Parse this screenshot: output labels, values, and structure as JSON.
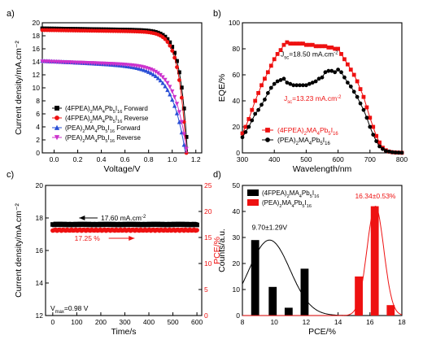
{
  "figure": {
    "panels": [
      "a)",
      "b)",
      "c)",
      "d)"
    ]
  },
  "chart_data": [
    {
      "panel": "a)",
      "type": "line",
      "xlabel": "Voltage/V",
      "ylabel": "Current density/mA.cm⁻²",
      "xlim": [
        -0.1,
        1.25
      ],
      "ylim": [
        0,
        20
      ],
      "xticks": [
        "0.0",
        "0.2",
        "0.4",
        "0.6",
        "0.8",
        "1.0",
        "1.2"
      ],
      "yticks": [
        "0",
        "2",
        "4",
        "6",
        "8",
        "10",
        "12",
        "14",
        "16",
        "18",
        "20"
      ],
      "legend_position": "bottom-left",
      "legend": [
        {
          "pre": "(4FPEA)",
          "s1": "2",
          "mid": "MA",
          "s2": "4",
          "mid2": "Pb",
          "s3": "5",
          "mid3": "I",
          "s4": "16",
          "post": " Forward"
        },
        {
          "pre": "(4FPEA)",
          "s1": "2",
          "mid": "MA",
          "s2": "4",
          "mid2": "Pb",
          "s3": "5",
          "mid3": "I",
          "s4": "16",
          "post": " Reverse"
        },
        {
          "pre": "(PEA)",
          "s1": "2",
          "mid": "MA",
          "s2": "4",
          "mid2": "Pb",
          "s3": "5",
          "mid3": "I",
          "s4": "16",
          "post": " Forward"
        },
        {
          "pre": "(PEA)",
          "s1": "2",
          "mid": "MA",
          "s2": "4",
          "mid2": "Pb",
          "s3": "5",
          "mid3": "I",
          "s4": "16",
          "post": " Reverse"
        }
      ],
      "series": [
        {
          "color": "#000000",
          "marker": "square",
          "jsc": 19.1,
          "voc": 1.13,
          "n": 2.5,
          "j0": 1e-18,
          "slope": 0.45
        },
        {
          "color": "#ee1111",
          "marker": "circle",
          "jsc": 18.85,
          "voc": 1.12,
          "n": 2.5,
          "j0": 1e-18,
          "slope": 0.4
        },
        {
          "color": "#2a4fd6",
          "marker": "triangle-up",
          "jsc": 14.05,
          "voc": 1.12,
          "n": 4.5,
          "j0": 1e-12,
          "slope": 0.9
        },
        {
          "color": "#cc33cc",
          "marker": "triangle-down",
          "jsc": 14.0,
          "voc": 1.13,
          "n": 4.0,
          "j0": 1e-12,
          "slope": 0.6
        }
      ]
    },
    {
      "panel": "b)",
      "type": "line",
      "xlabel": "Wavelength/nm",
      "ylabel": "EQE/%",
      "xlim": [
        300,
        800
      ],
      "ylim": [
        0,
        100
      ],
      "xticks": [
        "300",
        "400",
        "500",
        "600",
        "700",
        "800"
      ],
      "yticks": [
        "0",
        "20",
        "40",
        "60",
        "80",
        "100"
      ],
      "annotations": [
        {
          "pre": "J",
          "sub": "sc",
          "post": "=18.50 mA.cm",
          "sup": "-2",
          "color": "#000000",
          "x": 420,
          "y": 74
        },
        {
          "pre": "J",
          "sub": "sc",
          "post": "=13.23 mA.cm",
          "sup": "-2",
          "color": "#ee1111",
          "x": 430,
          "y": 40
        }
      ],
      "legend_position": "bottom-center",
      "legend": [
        {
          "pre": "(4FPEA)",
          "s1": "2",
          "mid": "MA",
          "s2": "4",
          "mid2": "Pb",
          "s3": "5",
          "mid3": "I",
          "s4": "16",
          "post": ""
        },
        {
          "pre": "(PEA)",
          "s1": "2",
          "mid": "MA",
          "s2": "4",
          "mid2": "Pb",
          "s3": "5",
          "mid3": "I",
          "s4": "16",
          "post": ""
        }
      ],
      "series": [
        {
          "color": "#ee1111",
          "marker": "square",
          "x": [
            300,
            310,
            320,
            330,
            340,
            350,
            360,
            370,
            380,
            390,
            400,
            410,
            420,
            430,
            440,
            450,
            460,
            470,
            480,
            490,
            500,
            510,
            520,
            530,
            540,
            550,
            560,
            570,
            580,
            590,
            600,
            610,
            620,
            630,
            640,
            650,
            660,
            670,
            680,
            690,
            700,
            710,
            720,
            730,
            740,
            750,
            760,
            770,
            780,
            790,
            800
          ],
          "y": [
            15,
            20,
            26,
            33,
            40,
            46,
            52,
            57,
            62,
            67,
            72,
            76,
            79,
            83,
            85,
            84,
            84,
            84,
            84,
            84,
            83,
            83,
            83,
            82,
            82,
            82,
            82,
            81,
            81,
            80,
            80,
            76,
            72,
            68,
            64,
            60,
            55,
            49,
            43,
            35,
            27,
            20,
            13,
            8,
            4,
            2,
            1,
            0.5,
            0.3,
            0.2,
            0.1
          ]
        },
        {
          "color": "#000000",
          "marker": "circle",
          "x": [
            300,
            310,
            320,
            330,
            340,
            350,
            360,
            370,
            380,
            390,
            400,
            410,
            420,
            430,
            440,
            450,
            460,
            470,
            480,
            490,
            500,
            510,
            520,
            530,
            540,
            550,
            560,
            570,
            580,
            590,
            600,
            610,
            620,
            630,
            640,
            650,
            660,
            670,
            680,
            690,
            700,
            710,
            720,
            730,
            740,
            750,
            760,
            770,
            780,
            790,
            800
          ],
          "y": [
            12,
            16,
            20,
            25,
            30,
            33,
            37,
            41,
            46,
            50,
            53,
            55,
            56,
            57,
            54,
            53,
            52,
            52,
            52,
            52,
            52,
            53,
            54,
            55,
            57,
            58,
            62,
            63,
            63,
            62,
            64,
            62,
            58,
            54,
            51,
            47,
            43,
            38,
            33,
            27,
            20,
            14,
            9,
            5,
            3,
            1.5,
            1,
            0.5,
            0.3,
            0.2,
            0.1
          ]
        }
      ]
    },
    {
      "panel": "c)",
      "type": "line",
      "xlabel": "Time/s",
      "ylabel": "Current density/mA.cm⁻²",
      "y2label": "PCE/%",
      "xlim": [
        -30,
        620
      ],
      "ylim": [
        12,
        20
      ],
      "y2lim": [
        0,
        25
      ],
      "xticks": [
        "0",
        "100",
        "200",
        "300",
        "400",
        "500",
        "600"
      ],
      "yticks": [
        "12",
        "14",
        "16",
        "18",
        "20"
      ],
      "y2ticks": [
        "0",
        "5",
        "10",
        "15",
        "20",
        "25"
      ],
      "annotations": [
        {
          "text": "17.60 mA.cm",
          "sup": "-2",
          "x": 200,
          "y": 17.85
        },
        {
          "text": "17.25 %",
          "x": 260,
          "y": 16.6
        }
      ],
      "vmax_text": {
        "pre": "V",
        "sub": "max",
        "post": "=0.98 V"
      },
      "series": [
        {
          "axis": "left",
          "color": "#000000",
          "marker": "square",
          "y": 17.6
        },
        {
          "axis": "right",
          "color": "#ee1111",
          "marker": "circle",
          "y": 17.25
        }
      ]
    },
    {
      "panel": "d)",
      "type": "bar",
      "xlabel": "PCE/%",
      "ylabel": "Counts/a.u.",
      "xlim": [
        8,
        18
      ],
      "ylim": [
        0,
        50
      ],
      "xticks": [
        "8",
        "10",
        "12",
        "14",
        "16",
        "18"
      ],
      "yticks": [
        "0",
        "10",
        "20",
        "30",
        "40",
        "50"
      ],
      "legend_position": "top-left",
      "legend": [
        {
          "pre": "(4FPEA)",
          "s1": "2",
          "mid": "MA",
          "s2": "4",
          "mid2": "Pb",
          "s3": "5",
          "mid3": "I",
          "s4": "16",
          "post": ""
        },
        {
          "pre": "(PEA)",
          "s1": "2",
          "mid": "MA",
          "s2": "4",
          "mid2": "Pb",
          "s3": "5",
          "mid3": "I",
          "s4": "16",
          "post": ""
        }
      ],
      "annotations": [
        {
          "text": "9.70±1.29V",
          "color": "#000000",
          "x": 9.7,
          "y": 33
        },
        {
          "text": "16.34±0.53%",
          "color": "#ee1111",
          "x": 16.34,
          "y": 45
        }
      ],
      "series": [
        {
          "color": "#000000",
          "bars": [
            {
              "x": 8.8,
              "y": 29
            },
            {
              "x": 9.9,
              "y": 11
            },
            {
              "x": 10.9,
              "y": 3
            },
            {
              "x": 11.9,
              "y": 18
            }
          ],
          "gauss": {
            "mu": 9.7,
            "sigma": 1.29,
            "amp": 29
          }
        },
        {
          "color": "#ee1111",
          "bars": [
            {
              "x": 15.3,
              "y": 15
            },
            {
              "x": 16.3,
              "y": 42
            },
            {
              "x": 17.3,
              "y": 4
            }
          ],
          "gauss": {
            "mu": 16.34,
            "sigma": 0.53,
            "amp": 42
          }
        }
      ]
    }
  ]
}
